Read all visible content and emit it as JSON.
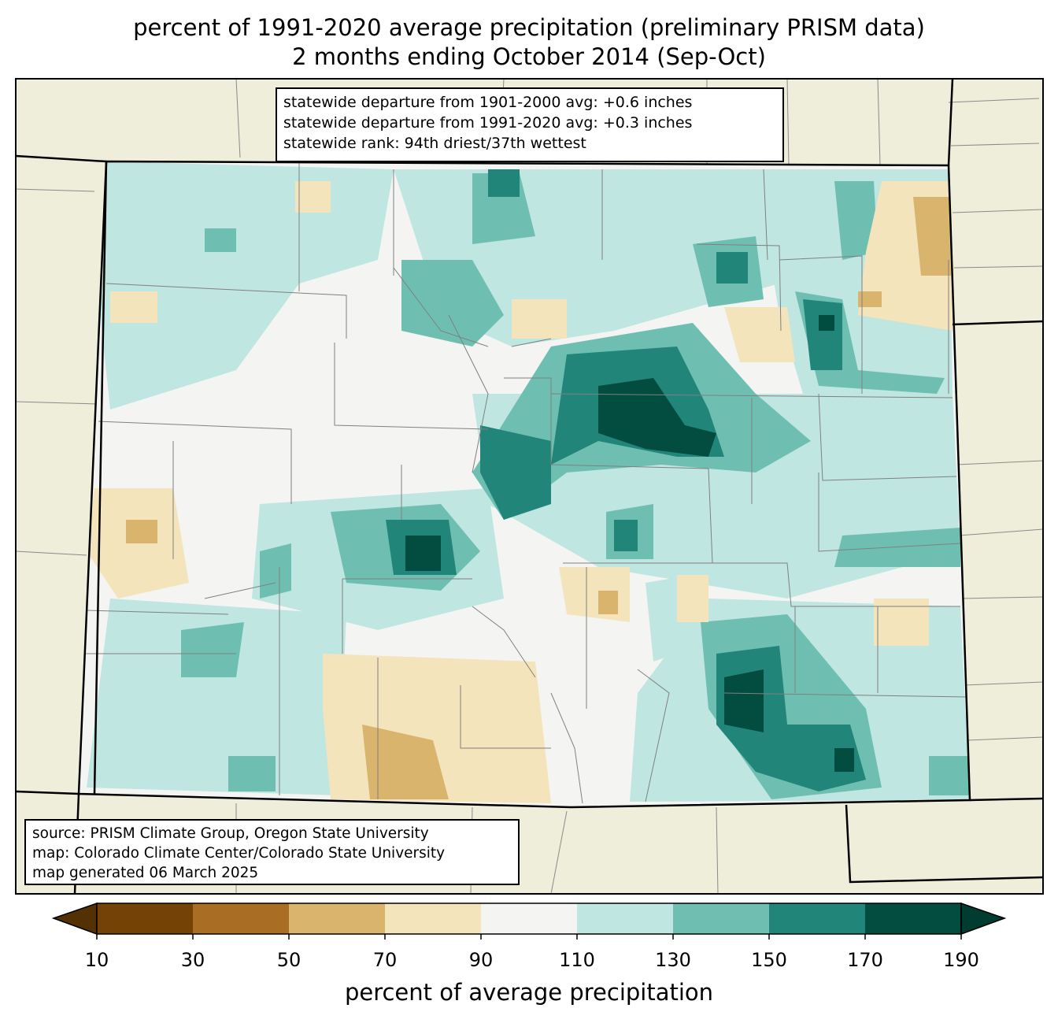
{
  "title": {
    "line1": "percent of 1991-2020 average precipitation (preliminary PRISM data)",
    "line2": "2 months ending October 2014 (Sep-Oct)"
  },
  "stats": {
    "line1": "statewide departure from 1901-2000 avg: +0.6 inches",
    "line2": "statewide departure from 1991-2020 avg: +0.3 inches",
    "line3": "statewide rank: 94th driest/37th wettest"
  },
  "source": {
    "line1": "source: PRISM Climate Group, Oregon State University",
    "line2": "map: Colorado Climate Center/Colorado State University",
    "line3": "map generated 06 March 2025"
  },
  "colorbar": {
    "label": "percent of average precipitation",
    "ticks": [
      "10",
      "30",
      "50",
      "70",
      "90",
      "110",
      "130",
      "150",
      "170",
      "190"
    ],
    "colors": [
      "#744205",
      "#a96d23",
      "#d8b46d",
      "#f4e4bb",
      "#f4f5f3",
      "#bfe6e0",
      "#6ebfb1",
      "#218579",
      "#024c40"
    ],
    "under_color": "#543005",
    "over_color": "#003c30"
  },
  "colors": {
    "background": "#efeedb",
    "state_interior": "#f4f5f3"
  }
}
